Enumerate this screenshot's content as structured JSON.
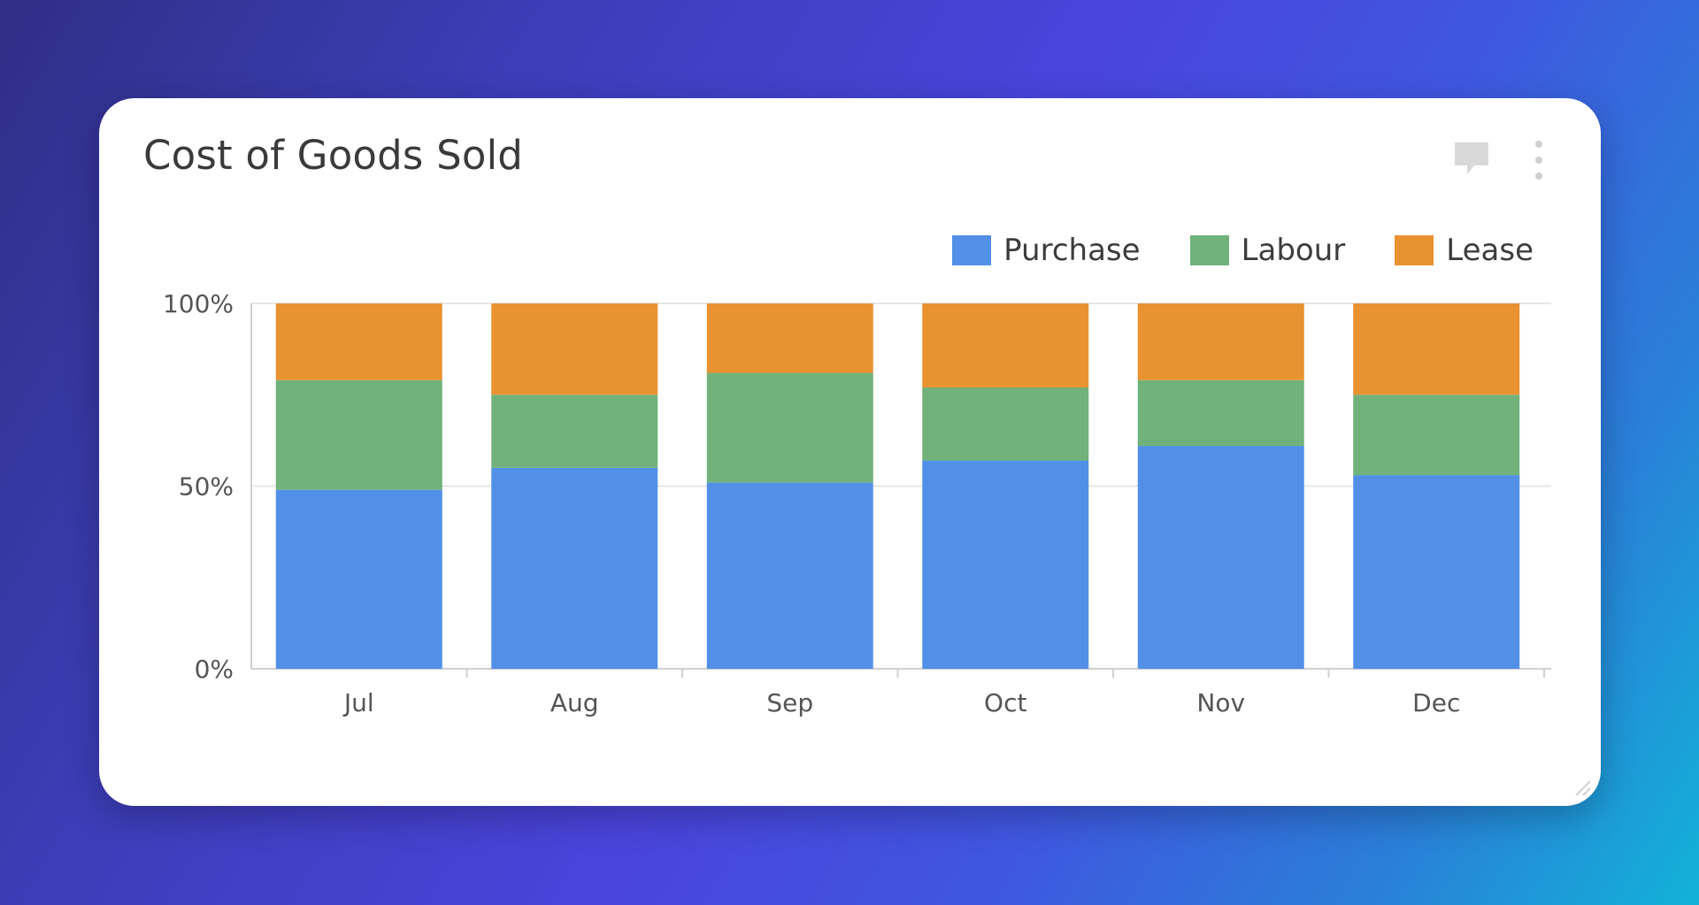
{
  "card": {
    "title": "Cost of Goods Sold",
    "icons": [
      "comment-icon",
      "more-vert-icon",
      "resize-handle-icon"
    ]
  },
  "chart_data": {
    "type": "bar",
    "stacked": true,
    "percent": true,
    "categories": [
      "Jul",
      "Aug",
      "Sep",
      "Oct",
      "Nov",
      "Dec"
    ],
    "series": [
      {
        "name": "Purchase",
        "color": "#5190e6",
        "values": [
          49,
          55,
          51,
          57,
          61,
          53
        ]
      },
      {
        "name": "Labour",
        "color": "#70b27a",
        "values": [
          30,
          20,
          30,
          20,
          18,
          22
        ]
      },
      {
        "name": "Lease",
        "color": "#e99231",
        "values": [
          21,
          25,
          19,
          23,
          21,
          25
        ]
      }
    ],
    "yticks": [
      "0%",
      "50%",
      "100%"
    ],
    "ylim": [
      0,
      100
    ],
    "grid": true,
    "legend": "top-right"
  }
}
